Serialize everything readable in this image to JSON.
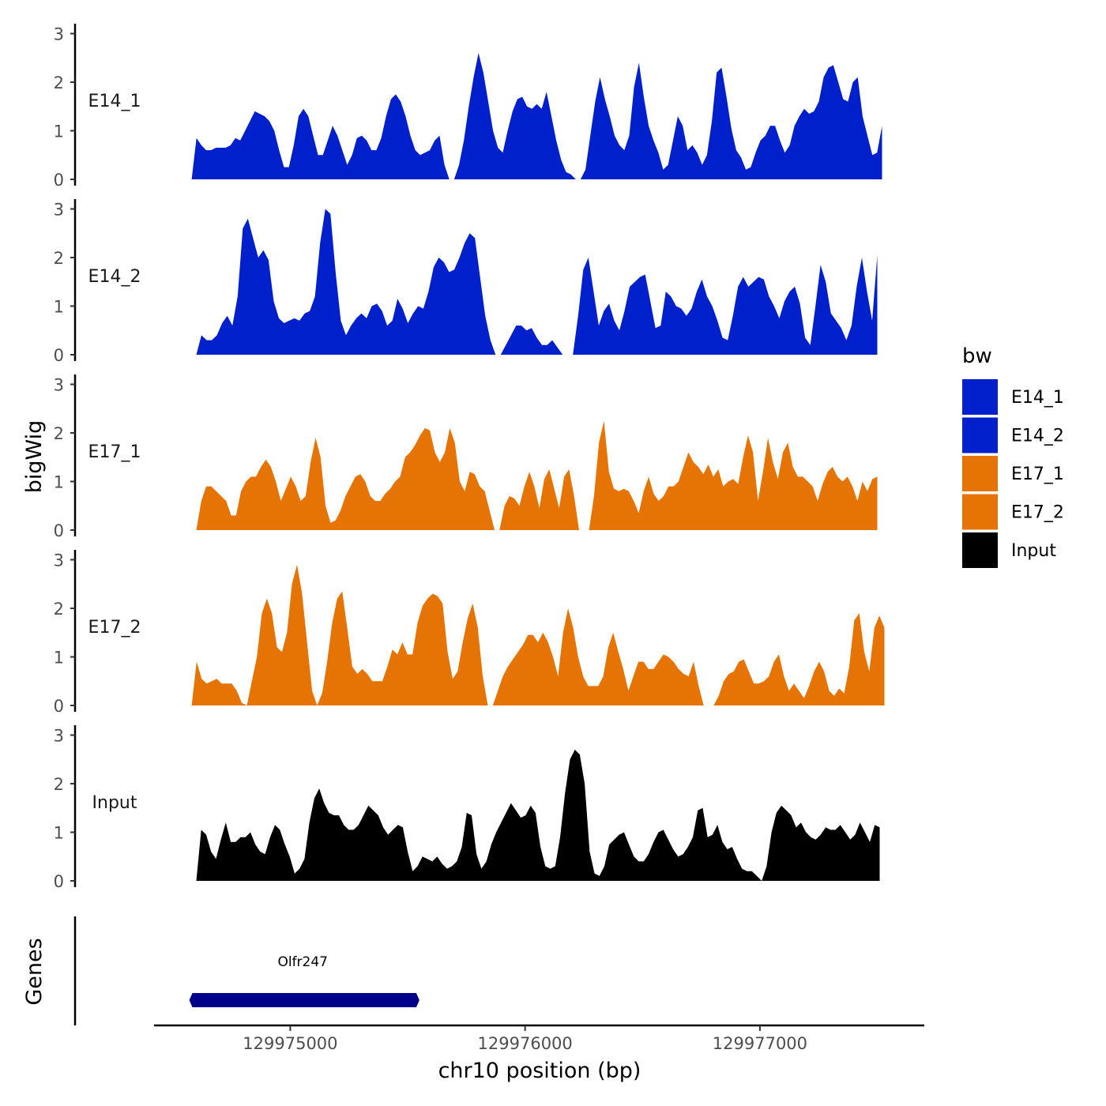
{
  "chart_data": {
    "type": "area",
    "y_axis_title": "bigWig",
    "x_axis_title": "chr10 position (bp)",
    "gene_panel_title": "Genes",
    "y_ticks": [
      "0",
      "1",
      "2",
      "3"
    ],
    "ylim": [
      0,
      3.2
    ],
    "xlim": [
      129974420,
      129977700
    ],
    "x_ticks": [
      {
        "value": 129975000,
        "label": "129975000"
      },
      {
        "value": 129976000,
        "label": "129976000"
      },
      {
        "value": 129977000,
        "label": "129977000"
      }
    ],
    "legend": {
      "title": "bw",
      "items": [
        {
          "label": "E14_1",
          "color": "#0020CC"
        },
        {
          "label": "E14_2",
          "color": "#0020CC"
        },
        {
          "label": "E17_1",
          "color": "#E67405"
        },
        {
          "label": "E17_2",
          "color": "#E67405"
        },
        {
          "label": "Input",
          "color": "#000000"
        }
      ]
    },
    "tracks": [
      {
        "name": "E14_1",
        "color": "#0020CC",
        "x_start": 129974580,
        "x_end": 129977520,
        "values": [
          0,
          0.85,
          0.7,
          0.6,
          0.6,
          0.65,
          0.65,
          0.65,
          0.7,
          0.85,
          0.8,
          1,
          1.2,
          1.4,
          1.35,
          1.3,
          1.2,
          1,
          0.6,
          0.25,
          0.25,
          0.7,
          1.3,
          1.45,
          1.3,
          0.9,
          0.5,
          0.5,
          0.8,
          1.1,
          0.9,
          0.6,
          0.3,
          0.5,
          0.85,
          0.9,
          0.8,
          0.6,
          0.6,
          0.85,
          1.3,
          1.65,
          1.75,
          1.6,
          1.3,
          0.9,
          0.6,
          0.5,
          0.55,
          0.6,
          0.8,
          0.9,
          0.3,
          0,
          0,
          0.3,
          0.8,
          1.5,
          2.1,
          2.6,
          2.2,
          1.6,
          1,
          0.65,
          0.55,
          1,
          1.4,
          1.65,
          1.7,
          1.5,
          1.45,
          1.55,
          1.45,
          1.8,
          1.3,
          0.8,
          0.4,
          0.15,
          0.1,
          0,
          0,
          0.2,
          0.9,
          1.6,
          2.1,
          1.65,
          1.3,
          0.9,
          0.7,
          0.6,
          0.9,
          1.9,
          2.4,
          1.7,
          1.1,
          0.8,
          0.55,
          0.2,
          0.3,
          0.8,
          1.3,
          1.1,
          0.6,
          0.7,
          0.55,
          0.3,
          0.5,
          1.2,
          2.2,
          2.3,
          1.7,
          1.05,
          0.6,
          0.45,
          0.2,
          0.25,
          0.55,
          0.8,
          0.9,
          1.1,
          1.1,
          0.8,
          0.55,
          0.7,
          1.1,
          1.3,
          1.45,
          1.35,
          1.4,
          1.6,
          2.1,
          2.3,
          2.35,
          2,
          1.65,
          1.6,
          2,
          2.1,
          1.3,
          0.9,
          0.5,
          0.55,
          1.1
        ]
      },
      {
        "name": "E14_2",
        "color": "#0020CC",
        "x_start": 129974600,
        "x_end": 129977500,
        "values": [
          0,
          0.4,
          0.3,
          0.3,
          0.4,
          0.65,
          0.8,
          0.6,
          1.2,
          2.6,
          2.8,
          2.4,
          2,
          2.15,
          1.95,
          1.1,
          0.75,
          0.65,
          0.7,
          0.75,
          0.7,
          0.85,
          0.9,
          1.2,
          2.3,
          3,
          2.9,
          1.7,
          0.7,
          0.4,
          0.6,
          0.75,
          0.85,
          0.75,
          1,
          1.05,
          0.9,
          0.6,
          0.7,
          1.15,
          0.95,
          0.65,
          0.85,
          1,
          0.95,
          1.3,
          1.8,
          2,
          1.9,
          1.7,
          1.75,
          2,
          2.3,
          2.5,
          2.4,
          1.6,
          0.8,
          0.3,
          0,
          0,
          0.2,
          0.4,
          0.6,
          0.6,
          0.5,
          0.55,
          0.35,
          0.2,
          0.2,
          0.3,
          0.15,
          0,
          0,
          0,
          0.8,
          1.75,
          2,
          1.3,
          0.6,
          0.9,
          1.05,
          0.7,
          0.5,
          0.9,
          1.4,
          1.5,
          1.6,
          1.65,
          1.1,
          0.55,
          0.6,
          1.3,
          1.2,
          1,
          0.95,
          0.8,
          0.95,
          1.3,
          1.55,
          1.2,
          1,
          0.7,
          0.35,
          0.3,
          0.8,
          1.4,
          1.6,
          1.4,
          1.5,
          1.6,
          1.55,
          1.2,
          1,
          0.75,
          1.1,
          1.3,
          1.4,
          1.05,
          0.35,
          0.2,
          1,
          1.85,
          1.5,
          0.85,
          0.7,
          0.55,
          0.3,
          0.6,
          1.4,
          2,
          1.3,
          0.7,
          2.05
        ]
      },
      {
        "name": "E17_1",
        "color": "#E67405",
        "x_start": 129974600,
        "x_end": 129977500,
        "values": [
          0,
          0.6,
          0.9,
          0.9,
          0.8,
          0.7,
          0.6,
          0.3,
          0.3,
          0.8,
          1,
          1.1,
          1.1,
          1.3,
          1.45,
          1.3,
          1,
          0.6,
          0.85,
          1.1,
          0.9,
          0.6,
          0.7,
          1.4,
          1.9,
          1.5,
          0.5,
          0.15,
          0.2,
          0.4,
          0.7,
          0.9,
          1.1,
          1.15,
          1,
          0.7,
          0.6,
          0.6,
          0.75,
          0.85,
          1,
          1.1,
          1.5,
          1.6,
          1.75,
          1.95,
          2.1,
          2.05,
          1.6,
          1.4,
          1.6,
          2.1,
          1.8,
          1,
          0.8,
          1.2,
          1.15,
          0.9,
          0.8,
          0.4,
          0,
          0,
          0.5,
          0.7,
          0.65,
          0.5,
          0.9,
          1.2,
          0.9,
          0.45,
          1.05,
          1.25,
          0.85,
          0.45,
          1.1,
          1.25,
          0.7,
          0,
          0,
          0,
          0.7,
          1.8,
          2.25,
          1.2,
          0.85,
          0.8,
          0.85,
          0.8,
          0.6,
          0.35,
          0.8,
          1.1,
          0.75,
          0.6,
          0.7,
          0.9,
          0.9,
          1,
          1.3,
          1.6,
          1.4,
          1.3,
          1.15,
          1.35,
          1.1,
          1.25,
          0.9,
          1,
          1.05,
          0.95,
          1.5,
          1.95,
          1.6,
          0.6,
          1.2,
          1.9,
          1.4,
          1.05,
          1.6,
          1.8,
          1.3,
          1.1,
          1.1,
          1,
          0.9,
          0.6,
          0.95,
          1.2,
          1.3,
          1.1,
          1,
          1.1,
          0.9,
          0.6,
          1,
          0.8,
          1.05,
          1.1
        ]
      },
      {
        "name": "E17_2",
        "color": "#E67405",
        "x_start": 129974580,
        "x_end": 129977530,
        "values": [
          0,
          0.9,
          0.55,
          0.45,
          0.5,
          0.55,
          0.45,
          0.45,
          0.45,
          0.3,
          0.05,
          0,
          0.5,
          1,
          1.9,
          2.2,
          1.9,
          1.2,
          1.1,
          1.5,
          2.5,
          2.9,
          2.3,
          1.3,
          0.3,
          0,
          0.25,
          0.9,
          1.7,
          2.2,
          2.35,
          1.6,
          0.8,
          0.65,
          0.75,
          0.65,
          0.5,
          0.5,
          0.5,
          0.8,
          1.15,
          1.05,
          1.3,
          1.05,
          1.05,
          1.7,
          2.05,
          2.2,
          2.3,
          2.25,
          2.1,
          1.1,
          0.55,
          0.7,
          1.3,
          1.8,
          2.1,
          1.6,
          0.6,
          0,
          0,
          0.3,
          0.6,
          0.8,
          0.95,
          1.1,
          1.25,
          1.45,
          1.45,
          1.3,
          1.5,
          1.3,
          1,
          0.6,
          1.5,
          2,
          1.6,
          1,
          0.6,
          0.4,
          0.4,
          0.4,
          0.6,
          1.2,
          1.5,
          1.1,
          0.75,
          0.3,
          0.6,
          0.9,
          0.9,
          0.75,
          0.75,
          0.9,
          1.05,
          1,
          0.9,
          0.75,
          0.65,
          0.6,
          0.9,
          0.4,
          0,
          0,
          0,
          0.2,
          0.5,
          0.65,
          0.7,
          0.9,
          0.95,
          0.7,
          0.45,
          0.45,
          0.5,
          0.6,
          0.9,
          1.05,
          0.6,
          0.3,
          0.45,
          0.3,
          0.15,
          0.4,
          0.7,
          0.9,
          0.7,
          0.3,
          0.2,
          0.35,
          0.25,
          0.8,
          1.75,
          1.9,
          1.1,
          0.7,
          1.6,
          1.85,
          1.6
        ]
      },
      {
        "name": "Input",
        "color": "#000000",
        "x_start": 129974600,
        "x_end": 129977510,
        "values": [
          0,
          1.05,
          0.95,
          0.6,
          0.45,
          0.85,
          1.2,
          0.8,
          0.8,
          0.9,
          0.9,
          1,
          0.75,
          0.6,
          0.55,
          0.9,
          1.15,
          1.05,
          0.75,
          0.5,
          0.15,
          0.25,
          0.45,
          1.2,
          1.7,
          1.9,
          1.6,
          1.4,
          1.35,
          1.35,
          1.15,
          1.05,
          1.05,
          1.15,
          1.35,
          1.55,
          1.45,
          1.35,
          1.1,
          0.95,
          1.05,
          1.15,
          1.1,
          0.6,
          0.2,
          0.3,
          0.5,
          0.45,
          0.4,
          0.5,
          0.35,
          0.25,
          0.3,
          0.4,
          0.7,
          1.4,
          1.35,
          0.55,
          0.25,
          0.4,
          0.75,
          1,
          1.2,
          1.4,
          1.6,
          1.45,
          1.3,
          1.35,
          1.55,
          1.4,
          0.7,
          0.3,
          0.25,
          0.3,
          0.9,
          1.8,
          2.5,
          2.7,
          2.6,
          2,
          0.6,
          0.15,
          0.1,
          0.3,
          0.75,
          0.85,
          0.95,
          1,
          0.75,
          0.5,
          0.4,
          0.4,
          0.55,
          0.8,
          1,
          1.05,
          0.85,
          0.65,
          0.5,
          0.55,
          0.7,
          0.9,
          1.45,
          1.5,
          0.9,
          0.95,
          1.15,
          0.8,
          0.65,
          0.7,
          0.45,
          0.25,
          0.2,
          0.2,
          0.1,
          0,
          0.3,
          1,
          1.4,
          1.55,
          1.45,
          1.35,
          1.1,
          1.2,
          1,
          0.9,
          0.85,
          0.95,
          1.1,
          1.05,
          1.05,
          1.15,
          1,
          0.85,
          0.95,
          1.2,
          1,
          0.8,
          1.15,
          1.1
        ]
      }
    ],
    "genes": [
      {
        "name": "Olfr247",
        "start": 129974570,
        "end": 129975550,
        "color": "#00008B"
      }
    ]
  }
}
